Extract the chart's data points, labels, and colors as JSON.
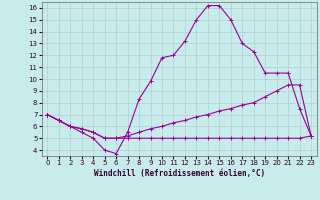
{
  "xlabel": "Windchill (Refroidissement éolien,°C)",
  "x_ticks": [
    0,
    1,
    2,
    3,
    4,
    5,
    6,
    7,
    8,
    9,
    10,
    11,
    12,
    13,
    14,
    15,
    16,
    17,
    18,
    19,
    20,
    21,
    22,
    23
  ],
  "y_ticks": [
    4,
    5,
    6,
    7,
    8,
    9,
    10,
    11,
    12,
    13,
    14,
    15,
    16
  ],
  "ylim": [
    3.5,
    16.5
  ],
  "xlim": [
    -0.5,
    23.5
  ],
  "bg_color": "#c8ecec",
  "line_color": "#990099",
  "grid_color": "#b0c8c8",
  "series1_x": [
    0,
    1,
    2,
    3,
    4,
    5,
    6,
    7,
    8,
    9,
    10,
    11,
    12,
    13,
    14,
    15,
    16,
    17,
    18,
    19,
    20,
    21,
    22,
    23
  ],
  "series1_y": [
    7.0,
    6.5,
    6.0,
    5.5,
    5.0,
    4.0,
    3.7,
    5.5,
    8.3,
    9.8,
    11.8,
    12.0,
    13.2,
    15.0,
    16.2,
    16.2,
    15.0,
    13.0,
    12.3,
    10.5,
    10.5,
    10.5,
    7.5,
    5.2
  ],
  "series2_x": [
    0,
    1,
    2,
    3,
    4,
    5,
    6,
    7,
    8,
    9,
    10,
    11,
    12,
    13,
    14,
    15,
    16,
    17,
    18,
    19,
    20,
    21,
    22,
    23
  ],
  "series2_y": [
    7.0,
    6.5,
    6.0,
    5.8,
    5.5,
    5.0,
    5.0,
    5.2,
    5.5,
    5.8,
    6.0,
    6.3,
    6.5,
    6.8,
    7.0,
    7.3,
    7.5,
    7.8,
    8.0,
    8.5,
    9.0,
    9.5,
    9.5,
    5.2
  ],
  "series3_x": [
    0,
    1,
    2,
    3,
    4,
    5,
    6,
    7,
    8,
    9,
    10,
    11,
    12,
    13,
    14,
    15,
    16,
    17,
    18,
    19,
    20,
    21,
    22,
    23
  ],
  "series3_y": [
    7.0,
    6.5,
    6.0,
    5.8,
    5.5,
    5.0,
    5.0,
    5.0,
    5.0,
    5.0,
    5.0,
    5.0,
    5.0,
    5.0,
    5.0,
    5.0,
    5.0,
    5.0,
    5.0,
    5.0,
    5.0,
    5.0,
    5.0,
    5.2
  ]
}
